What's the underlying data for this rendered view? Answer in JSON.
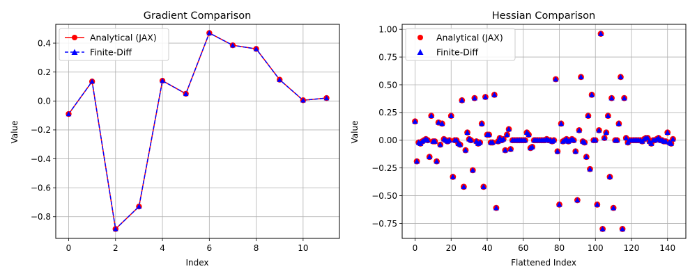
{
  "chart_data": [
    {
      "type": "line",
      "title": "Gradient Comparison",
      "xlabel": "Index",
      "ylabel": "Value",
      "xlim": [
        -0.55,
        11.55
      ],
      "ylim": [
        -0.95,
        0.53
      ],
      "xticks": [
        0,
        2,
        4,
        6,
        8,
        10
      ],
      "yticks": [
        -0.8,
        -0.6,
        -0.4,
        -0.2,
        0.0,
        0.2,
        0.4
      ],
      "xtick_labels": [
        "0",
        "2",
        "4",
        "6",
        "8",
        "10"
      ],
      "ytick_labels": [
        "−0.8",
        "−0.6",
        "−0.4",
        "−0.2",
        "0.0",
        "0.2",
        "0.4"
      ],
      "grid": true,
      "legend": "top-left",
      "x": [
        0,
        1,
        2,
        3,
        4,
        5,
        6,
        7,
        8,
        9,
        10,
        11
      ],
      "series": [
        {
          "name": "Analytical (JAX)",
          "color": "#ff0000",
          "marker": "circle",
          "line": "solid",
          "values": [
            -0.09,
            0.135,
            -0.885,
            -0.73,
            0.14,
            0.05,
            0.47,
            0.385,
            0.36,
            0.147,
            0.005,
            0.02
          ]
        },
        {
          "name": "Finite-Diff",
          "color": "#0000ff",
          "marker": "triangle",
          "line": "dashed",
          "values": [
            -0.09,
            0.135,
            -0.885,
            -0.73,
            0.14,
            0.05,
            0.47,
            0.385,
            0.36,
            0.147,
            0.005,
            0.02
          ]
        }
      ]
    },
    {
      "type": "scatter",
      "title": "Hessian Comparison",
      "xlabel": "Flattened Index",
      "ylabel": "Value",
      "xlim": [
        -7.15,
        150.15
      ],
      "ylim": [
        -0.885,
        1.045
      ],
      "xticks": [
        0,
        20,
        40,
        60,
        80,
        100,
        120,
        140
      ],
      "yticks": [
        -0.75,
        -0.5,
        -0.25,
        0.0,
        0.25,
        0.5,
        0.75,
        1.0
      ],
      "xtick_labels": [
        "0",
        "20",
        "40",
        "60",
        "80",
        "100",
        "120",
        "140"
      ],
      "ytick_labels": [
        "−0.75",
        "−0.50",
        "−0.25",
        "0.00",
        "0.25",
        "0.50",
        "0.75",
        "1.00"
      ],
      "grid": true,
      "legend": "top-left",
      "x": [
        0,
        1,
        2,
        3,
        4,
        5,
        6,
        7,
        8,
        9,
        10,
        11,
        12,
        13,
        14,
        15,
        16,
        17,
        18,
        19,
        20,
        21,
        22,
        23,
        24,
        25,
        26,
        27,
        28,
        29,
        30,
        31,
        32,
        33,
        34,
        35,
        36,
        37,
        38,
        39,
        40,
        41,
        42,
        43,
        44,
        45,
        46,
        47,
        48,
        49,
        50,
        51,
        52,
        53,
        54,
        55,
        56,
        57,
        58,
        59,
        60,
        61,
        62,
        63,
        64,
        65,
        66,
        67,
        68,
        69,
        70,
        71,
        72,
        73,
        74,
        75,
        76,
        77,
        78,
        79,
        80,
        81,
        82,
        83,
        84,
        85,
        86,
        87,
        88,
        89,
        90,
        91,
        92,
        93,
        94,
        95,
        96,
        97,
        98,
        99,
        100,
        101,
        102,
        103,
        104,
        105,
        106,
        107,
        108,
        109,
        110,
        111,
        112,
        113,
        114,
        115,
        116,
        117,
        118,
        119,
        120,
        121,
        122,
        123,
        124,
        125,
        126,
        127,
        128,
        129,
        130,
        131,
        132,
        133,
        134,
        135,
        136,
        137,
        138,
        139,
        140,
        141,
        142,
        143
      ],
      "series": [
        {
          "name": "Analytical (JAX)",
          "color": "#ff0000",
          "marker": "circle",
          "values": [
            0.17,
            -0.19,
            -0.02,
            -0.03,
            -0.01,
            0.0,
            0.01,
            0.0,
            -0.15,
            0.22,
            -0.01,
            -0.01,
            -0.19,
            0.16,
            -0.04,
            0.15,
            0.01,
            0.0,
            -0.01,
            0.0,
            0.22,
            -0.33,
            0.0,
            0.0,
            -0.03,
            -0.04,
            0.36,
            -0.42,
            -0.09,
            0.07,
            0.01,
            0.0,
            -0.27,
            0.38,
            -0.01,
            -0.03,
            -0.02,
            0.15,
            -0.42,
            0.39,
            0.05,
            0.05,
            -0.02,
            -0.02,
            0.41,
            -0.61,
            -0.01,
            0.02,
            0.0,
            0.01,
            -0.09,
            0.05,
            0.1,
            -0.08,
            0.0,
            0.0,
            0.0,
            0.0,
            0.0,
            0.0,
            0.0,
            0.0,
            0.07,
            0.05,
            -0.07,
            -0.06,
            0.0,
            0.0,
            0.0,
            0.0,
            0.0,
            0.0,
            0.0,
            0.01,
            0.0,
            0.0,
            -0.01,
            0.0,
            0.55,
            -0.1,
            -0.58,
            0.15,
            -0.01,
            0.0,
            0.01,
            -0.01,
            0.0,
            0.01,
            0.0,
            -0.1,
            -0.54,
            0.09,
            0.57,
            -0.01,
            -0.02,
            -0.15,
            0.22,
            -0.26,
            0.41,
            0.0,
            0.0,
            -0.58,
            0.09,
            0.96,
            -0.8,
            0.02,
            0.07,
            0.22,
            -0.33,
            0.38,
            -0.61,
            0.0,
            0.0,
            0.15,
            0.57,
            -0.8,
            0.38,
            0.02,
            -0.02,
            0.0,
            0.0,
            0.0,
            0.0,
            0.0,
            0.0,
            0.0,
            -0.01,
            0.01,
            0.02,
            0.02,
            -0.01,
            -0.03,
            0.0,
            0.0,
            0.01,
            0.02,
            0.0,
            0.0,
            -0.01,
            -0.01,
            0.07,
            -0.02,
            -0.03,
            0.01
          ]
        },
        {
          "name": "Finite-Diff",
          "color": "#0000ff",
          "marker": "triangle",
          "values": [
            0.17,
            -0.19,
            -0.02,
            -0.03,
            -0.01,
            0.0,
            0.01,
            0.0,
            -0.15,
            0.22,
            -0.01,
            -0.01,
            -0.19,
            0.16,
            -0.04,
            0.15,
            0.01,
            0.0,
            -0.01,
            0.0,
            0.22,
            -0.33,
            0.0,
            0.0,
            -0.03,
            -0.04,
            0.36,
            -0.42,
            -0.09,
            0.07,
            0.01,
            0.0,
            -0.27,
            0.38,
            -0.01,
            -0.03,
            -0.02,
            0.15,
            -0.42,
            0.39,
            0.05,
            0.05,
            -0.02,
            -0.02,
            0.41,
            -0.61,
            -0.01,
            0.02,
            0.0,
            0.01,
            -0.09,
            0.05,
            0.1,
            -0.08,
            0.0,
            0.0,
            0.0,
            0.0,
            0.0,
            0.0,
            0.0,
            0.0,
            0.07,
            0.05,
            -0.07,
            -0.06,
            0.0,
            0.0,
            0.0,
            0.0,
            0.0,
            0.0,
            0.0,
            0.01,
            0.0,
            0.0,
            -0.01,
            0.0,
            0.55,
            -0.1,
            -0.58,
            0.15,
            -0.01,
            0.0,
            0.01,
            -0.01,
            0.0,
            0.01,
            0.0,
            -0.1,
            -0.54,
            0.09,
            0.57,
            -0.01,
            -0.02,
            -0.15,
            0.22,
            -0.26,
            0.41,
            0.0,
            0.0,
            -0.58,
            0.09,
            0.96,
            -0.8,
            0.02,
            0.07,
            0.22,
            -0.33,
            0.38,
            -0.61,
            0.0,
            0.0,
            0.15,
            0.57,
            -0.8,
            0.38,
            0.02,
            -0.02,
            0.0,
            0.0,
            0.0,
            0.0,
            0.0,
            0.0,
            0.0,
            -0.01,
            0.01,
            0.02,
            0.02,
            -0.01,
            -0.03,
            0.0,
            0.0,
            0.01,
            0.02,
            0.0,
            0.0,
            -0.01,
            -0.01,
            0.07,
            -0.02,
            -0.03,
            0.01
          ]
        }
      ]
    }
  ]
}
